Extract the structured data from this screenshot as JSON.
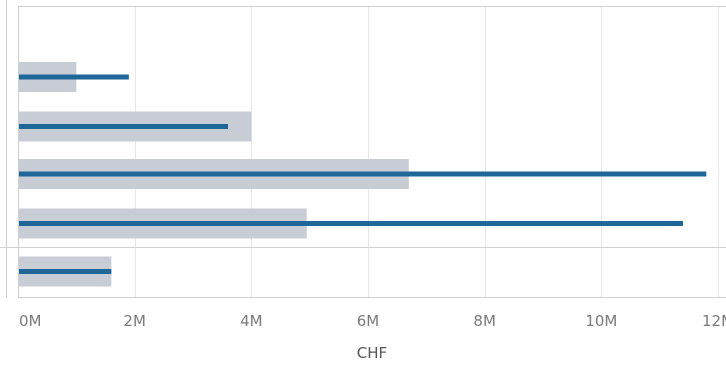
{
  "chart_data": {
    "type": "bar",
    "subtype": "bullet-horizontal",
    "xlabel": "CHF",
    "xlim": [
      0,
      12000000
    ],
    "x_ticks": [
      0,
      2000000,
      4000000,
      6000000,
      8000000,
      10000000,
      12000000
    ],
    "x_tick_labels": [
      "0M",
      "2M",
      "4M",
      "6M",
      "8M",
      "10M",
      "12M"
    ],
    "series": [
      {
        "values": [
          1000000,
          4000000,
          6700000,
          4950000,
          1600000
        ]
      },
      {
        "values": [
          1900000,
          3600000,
          11800000,
          11400000,
          1600000
        ]
      }
    ],
    "grid": true,
    "colors": {
      "background_bar": "#c8cdd5",
      "value_bar": "#1f6699",
      "grid": "#e6e6e6",
      "border": "#cccccc"
    }
  }
}
